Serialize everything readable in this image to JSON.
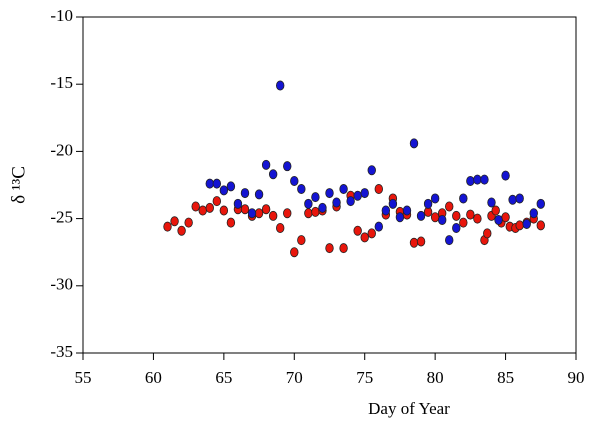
{
  "chart_data": {
    "type": "scatter",
    "xlabel": "Day of Year",
    "ylabel": "δ ¹³C",
    "xlim": [
      55,
      90
    ],
    "xticks": [
      55,
      60,
      65,
      70,
      75,
      80,
      85,
      90
    ],
    "ylim": [
      -35,
      -10
    ],
    "yticks": [
      -35,
      -30,
      -25,
      -20,
      -15,
      -10
    ],
    "series": [
      {
        "color": "#e8160c",
        "x": [
          61,
          61.5,
          62,
          62.5,
          63,
          63.5,
          64,
          64.5,
          65,
          65.5,
          66,
          66.5,
          67,
          67.5,
          68,
          68.5,
          69,
          69.5,
          70,
          70.5,
          71,
          71.5,
          72,
          72.5,
          73,
          73.5,
          74,
          74.5,
          75,
          75.5,
          76,
          76.5,
          77,
          77.5,
          78,
          78.5,
          79,
          79.5,
          80,
          80.5,
          81,
          81.5,
          82,
          82.5,
          83,
          83.5,
          83.7,
          84,
          84.3,
          84.7,
          85,
          85.3,
          85.7,
          86,
          86.5,
          87,
          87.5
        ],
        "values": [
          -25.6,
          -25.2,
          -25.9,
          -25.3,
          -24.1,
          -24.4,
          -24.2,
          -23.7,
          -24.4,
          -25.3,
          -24.3,
          -24.3,
          -24.8,
          -24.6,
          -24.3,
          -24.8,
          -25.7,
          -24.6,
          -27.5,
          -26.6,
          -24.6,
          -24.5,
          -24.4,
          -27.2,
          -24.1,
          -27.2,
          -23.3,
          -25.9,
          -26.4,
          -26.1,
          -22.8,
          -24.7,
          -23.5,
          -24.5,
          -24.7,
          -26.8,
          -26.7,
          -24.5,
          -24.9,
          -24.6,
          -24.1,
          -24.8,
          -25.3,
          -24.7,
          -25.0,
          -26.6,
          -26.1,
          -24.8,
          -24.4,
          -25.3,
          -24.9,
          -25.6,
          -25.7,
          -25.5,
          -25.3,
          -25.0,
          -25.5
        ]
      },
      {
        "color": "#1414d2",
        "x": [
          64,
          64.5,
          65,
          65.5,
          66,
          66.5,
          67,
          67.5,
          68,
          68.5,
          69,
          69.5,
          70,
          70.5,
          71,
          71.5,
          72,
          72.5,
          73,
          73.5,
          74,
          74.5,
          75,
          75.5,
          76,
          76.5,
          77,
          77.5,
          78,
          78.5,
          79,
          79.5,
          80,
          80.5,
          81,
          81.5,
          82,
          82.5,
          83,
          83.5,
          84,
          84.5,
          85,
          85.5,
          86,
          86.5,
          87,
          87.5
        ],
        "values": [
          -22.4,
          -22.4,
          -22.9,
          -22.6,
          -23.9,
          -23.1,
          -24.6,
          -23.2,
          -21.0,
          -21.7,
          -15.1,
          -21.1,
          -22.2,
          -22.8,
          -23.9,
          -23.4,
          -24.2,
          -23.1,
          -23.8,
          -22.8,
          -23.7,
          -23.3,
          -23.1,
          -21.4,
          -25.6,
          -24.4,
          -23.9,
          -24.9,
          -24.4,
          -19.4,
          -24.8,
          -23.9,
          -23.5,
          -25.1,
          -26.6,
          -25.7,
          -23.5,
          -22.2,
          -22.1,
          -22.1,
          -23.8,
          -25.1,
          -21.8,
          -23.6,
          -23.5,
          -25.4,
          -24.6,
          -23.9
        ]
      }
    ]
  }
}
